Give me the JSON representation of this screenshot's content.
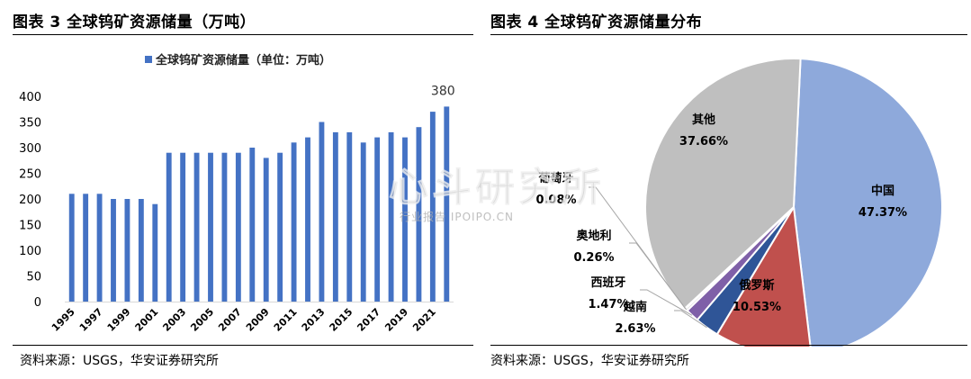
{
  "figures": {
    "left_title": "图表 3  全球钨矿资源储量（万吨）",
    "right_title": "图表 4  全球钨矿资源储量分布",
    "left_source": "资料来源：USGS，华安证券研究所",
    "right_source": "资料来源：USGS，华安证券研究所"
  },
  "watermark": {
    "main": "心斗研究所",
    "sub": "行业报告 IPOIPO.CN"
  },
  "colors": {
    "bar": "#4472C4",
    "pie_china": "#8EA9DB",
    "pie_russia": "#C0504D",
    "pie_vietnam": "#2F5597",
    "pie_spain": "#7F60A8",
    "pie_austria": "#D9D9D9",
    "pie_portugal": "#A5A5A5",
    "pie_other": "#BFBFBF"
  },
  "chart_data": [
    {
      "type": "bar",
      "title": "全球钨矿资源储量（万吨）",
      "legend": "全球钨矿资源储量（单位：万吨）",
      "legend_placement": "top-center",
      "categories": [
        "1995",
        "1996",
        "1997",
        "1998",
        "1999",
        "2000",
        "2001",
        "2002",
        "2003",
        "2004",
        "2005",
        "2006",
        "2007",
        "2008",
        "2009",
        "2010",
        "2011",
        "2012",
        "2013",
        "2014",
        "2015",
        "2016",
        "2017",
        "2018",
        "2019",
        "2020",
        "2021",
        "2022"
      ],
      "values": [
        210,
        210,
        210,
        200,
        200,
        200,
        190,
        290,
        290,
        290,
        290,
        290,
        290,
        300,
        280,
        290,
        310,
        320,
        350,
        330,
        330,
        310,
        320,
        330,
        320,
        340,
        370,
        380
      ],
      "xtick_labels": [
        "1995",
        "1997",
        "1999",
        "2001",
        "2003",
        "2005",
        "2007",
        "2009",
        "2011",
        "2013",
        "2015",
        "2017",
        "2019",
        "2021"
      ],
      "yticks": [
        0,
        50,
        100,
        150,
        200,
        250,
        300,
        350,
        400
      ],
      "ylim": [
        0,
        400
      ],
      "annotation": {
        "category": "2022",
        "text": "380"
      },
      "grid": false
    },
    {
      "type": "pie",
      "title": "全球钨矿资源储量分布",
      "slices": [
        {
          "label": "中国",
          "pct_text": "47.37%",
          "value": 47.37,
          "color_key": "pie_china"
        },
        {
          "label": "俄罗斯",
          "pct_text": "10.53%",
          "value": 10.53,
          "color_key": "pie_russia"
        },
        {
          "label": "越南",
          "pct_text": "2.63%",
          "value": 2.63,
          "color_key": "pie_vietnam"
        },
        {
          "label": "西班牙",
          "pct_text": "1.47%",
          "value": 1.47,
          "color_key": "pie_spain"
        },
        {
          "label": "奥地利",
          "pct_text": "0.26%",
          "value": 0.26,
          "color_key": "pie_austria"
        },
        {
          "label": "葡萄牙",
          "pct_text": "0.08%",
          "value": 0.08,
          "color_key": "pie_portugal"
        },
        {
          "label": "其他",
          "pct_text": "37.66%",
          "value": 37.66,
          "color_key": "pie_other"
        }
      ]
    }
  ]
}
